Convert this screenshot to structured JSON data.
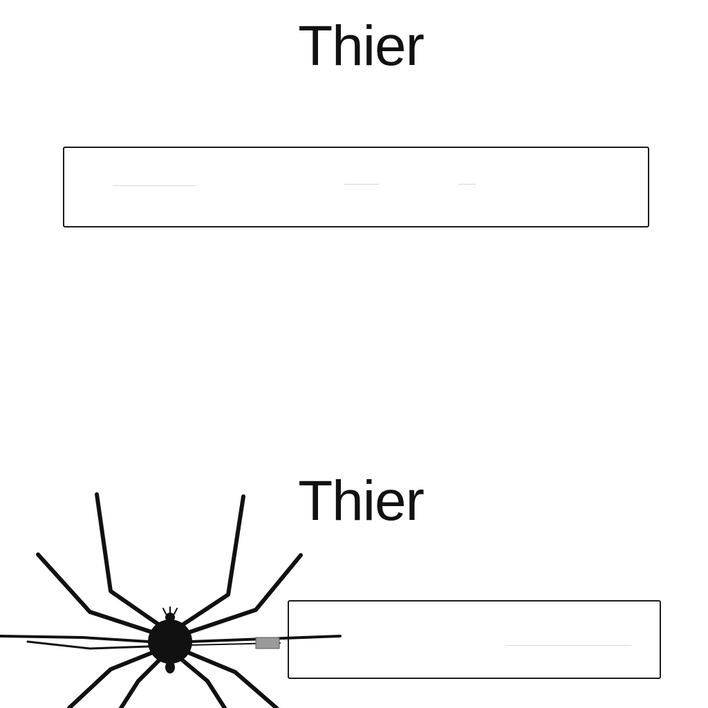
{
  "top_section": {
    "title": "Thier"
  },
  "bottom_section": {
    "title": "Thier"
  },
  "illustration": {
    "icon": "spider-icon",
    "color": "#111111"
  }
}
